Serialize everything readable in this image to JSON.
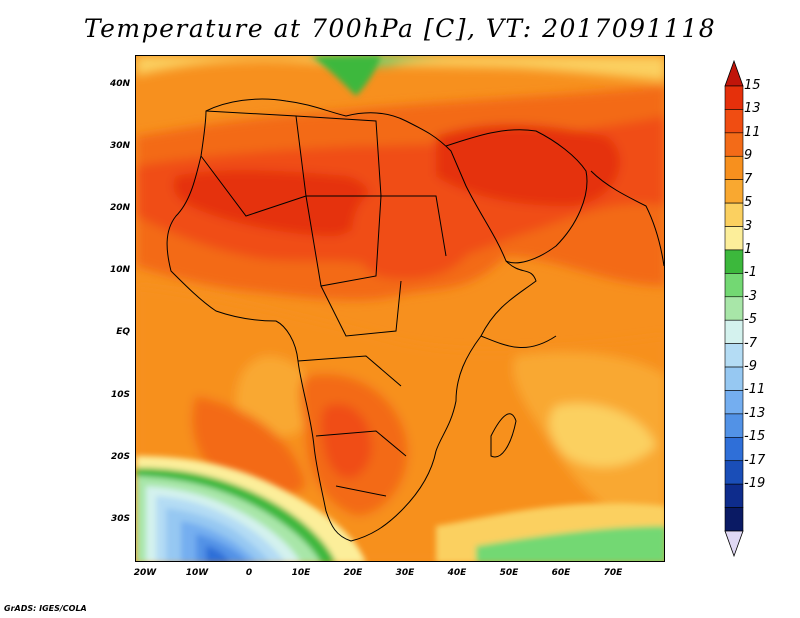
{
  "title": "Temperature at 700hPa [C], VT: 2017091118",
  "footer": "GrADS: IGES/COLA",
  "map": {
    "lat_labels": [
      "40N",
      "30N",
      "20N",
      "10N",
      "EQ",
      "10S",
      "20S",
      "30S"
    ],
    "lon_labels": [
      "20W",
      "10W",
      "0",
      "10E",
      "20E",
      "30E",
      "40E",
      "50E",
      "60E",
      "70E"
    ]
  },
  "colorbar": {
    "labels": [
      "15",
      "13",
      "11",
      "9",
      "7",
      "5",
      "3",
      "1",
      "-1",
      "-3",
      "-5",
      "-7",
      "-9",
      "-11",
      "-13",
      "-15",
      "-17",
      "-19"
    ],
    "colors": [
      "#e5300b",
      "#f04d12",
      "#f36b18",
      "#f7901e",
      "#f9a830",
      "#fbd060",
      "#fcee9a",
      "#3cb83c",
      "#73d873",
      "#a8e6a8",
      "#d4f2ee",
      "#b4dcf4",
      "#96c8f2",
      "#74aef0",
      "#5292e6",
      "#2f6fd8",
      "#1a4eb8",
      "#0e2c8c",
      "#0a1a64"
    ],
    "top_arrow_color": "#c0150a",
    "bottom_arrow_color": "#e0d8f4"
  }
}
